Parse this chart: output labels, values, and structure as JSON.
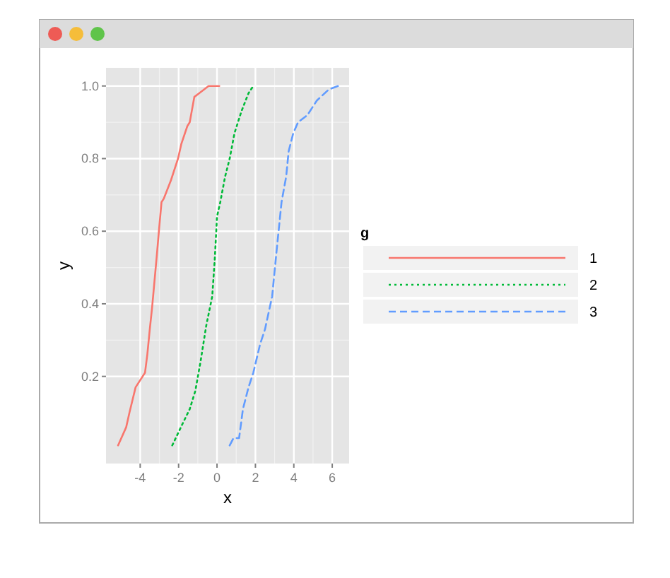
{
  "chart_data": {
    "type": "line",
    "xlabel": "x",
    "ylabel": "y",
    "legend_title": "g",
    "legend": "right",
    "grid": true,
    "xlim": [
      -5.78,
      6.88
    ],
    "ylim": [
      -0.04,
      1.05
    ],
    "xticks": [
      -4,
      -2,
      0,
      2,
      4,
      6
    ],
    "yticks": [
      {
        "value": 0.2,
        "label": "0.2"
      },
      {
        "value": 0.4,
        "label": "0.4"
      },
      {
        "value": 0.6,
        "label": "0.6"
      },
      {
        "value": 0.8,
        "label": "0.8"
      },
      {
        "value": 1,
        "label": "1.0"
      }
    ],
    "series": [
      {
        "name": "1",
        "color": "#f8766d",
        "line_style": "solid",
        "x": [
          -5.15,
          -4.73,
          -4.56,
          -4.24,
          -3.75,
          -3.63,
          -3.5,
          -3.38,
          -3.26,
          -3.14,
          -3.01,
          -2.89,
          -2.77,
          -2.4,
          -2.03,
          -1.86,
          -1.67,
          -1.54,
          -1.42,
          -1.18,
          -0.93,
          -0.44,
          0.12
        ],
        "values": [
          0.01,
          0.06,
          0.1,
          0.17,
          0.21,
          0.26,
          0.33,
          0.39,
          0.46,
          0.53,
          0.61,
          0.68,
          0.69,
          0.74,
          0.8,
          0.84,
          0.87,
          0.89,
          0.9,
          0.97,
          0.98,
          1,
          1
        ]
      },
      {
        "name": "2",
        "color": "#00ba38",
        "line_style": "dotted",
        "x": [
          -2.33,
          -1.79,
          -1.42,
          -1.13,
          -0.86,
          -0.56,
          -0.25,
          -0.12,
          0,
          0.17,
          0.42,
          0.66,
          0.91,
          1.27,
          1.64,
          1.89
        ],
        "values": [
          0.01,
          0.07,
          0.11,
          0.16,
          0.24,
          0.34,
          0.42,
          0.52,
          0.64,
          0.68,
          0.75,
          0.8,
          0.87,
          0.93,
          0.98,
          1
        ]
      },
      {
        "name": "3",
        "color": "#619cff",
        "line_style": "dashed",
        "x": [
          0.66,
          0.86,
          1.15,
          1.35,
          1.64,
          1.89,
          2.25,
          2.5,
          2.87,
          3.11,
          3.36,
          3.6,
          3.73,
          3.97,
          4.22,
          4.71,
          5.2,
          5.81,
          6.3
        ],
        "values": [
          0.01,
          0.03,
          0.03,
          0.11,
          0.17,
          0.21,
          0.29,
          0.33,
          0.42,
          0.55,
          0.68,
          0.75,
          0.82,
          0.87,
          0.9,
          0.92,
          0.96,
          0.99,
          1
        ]
      }
    ]
  }
}
